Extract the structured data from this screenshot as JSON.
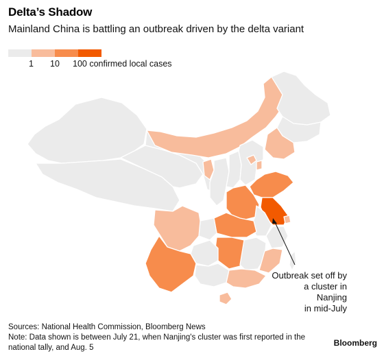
{
  "title": "Delta’s Shadow",
  "subtitle": "Mainland China is battling an outbreak driven by the delta variant",
  "legend": {
    "colors": [
      "#ebebeb",
      "#f8bc9c",
      "#f78c4c",
      "#f25a00"
    ],
    "labels": [
      "1",
      "10",
      "100 confirmed local cases"
    ]
  },
  "map": {
    "region": "Mainland China",
    "colors": {
      "none": "#ebebeb",
      "low": "#f8bc9c",
      "mid": "#f78c4c",
      "high": "#f25a00",
      "border": "#ffffff"
    }
  },
  "annotation": {
    "lines": [
      "Outbreak set off by",
      "a cluster in Nanjing",
      "in mid-July"
    ]
  },
  "footer": {
    "source": "Sources: National Health Commission, Bloomberg News",
    "note_line1": "Note: Data shown is between July 21, when Nanjing's cluster was first reported in the",
    "note_line2": "national tally, and Aug. 5"
  },
  "brand": "Bloomberg"
}
